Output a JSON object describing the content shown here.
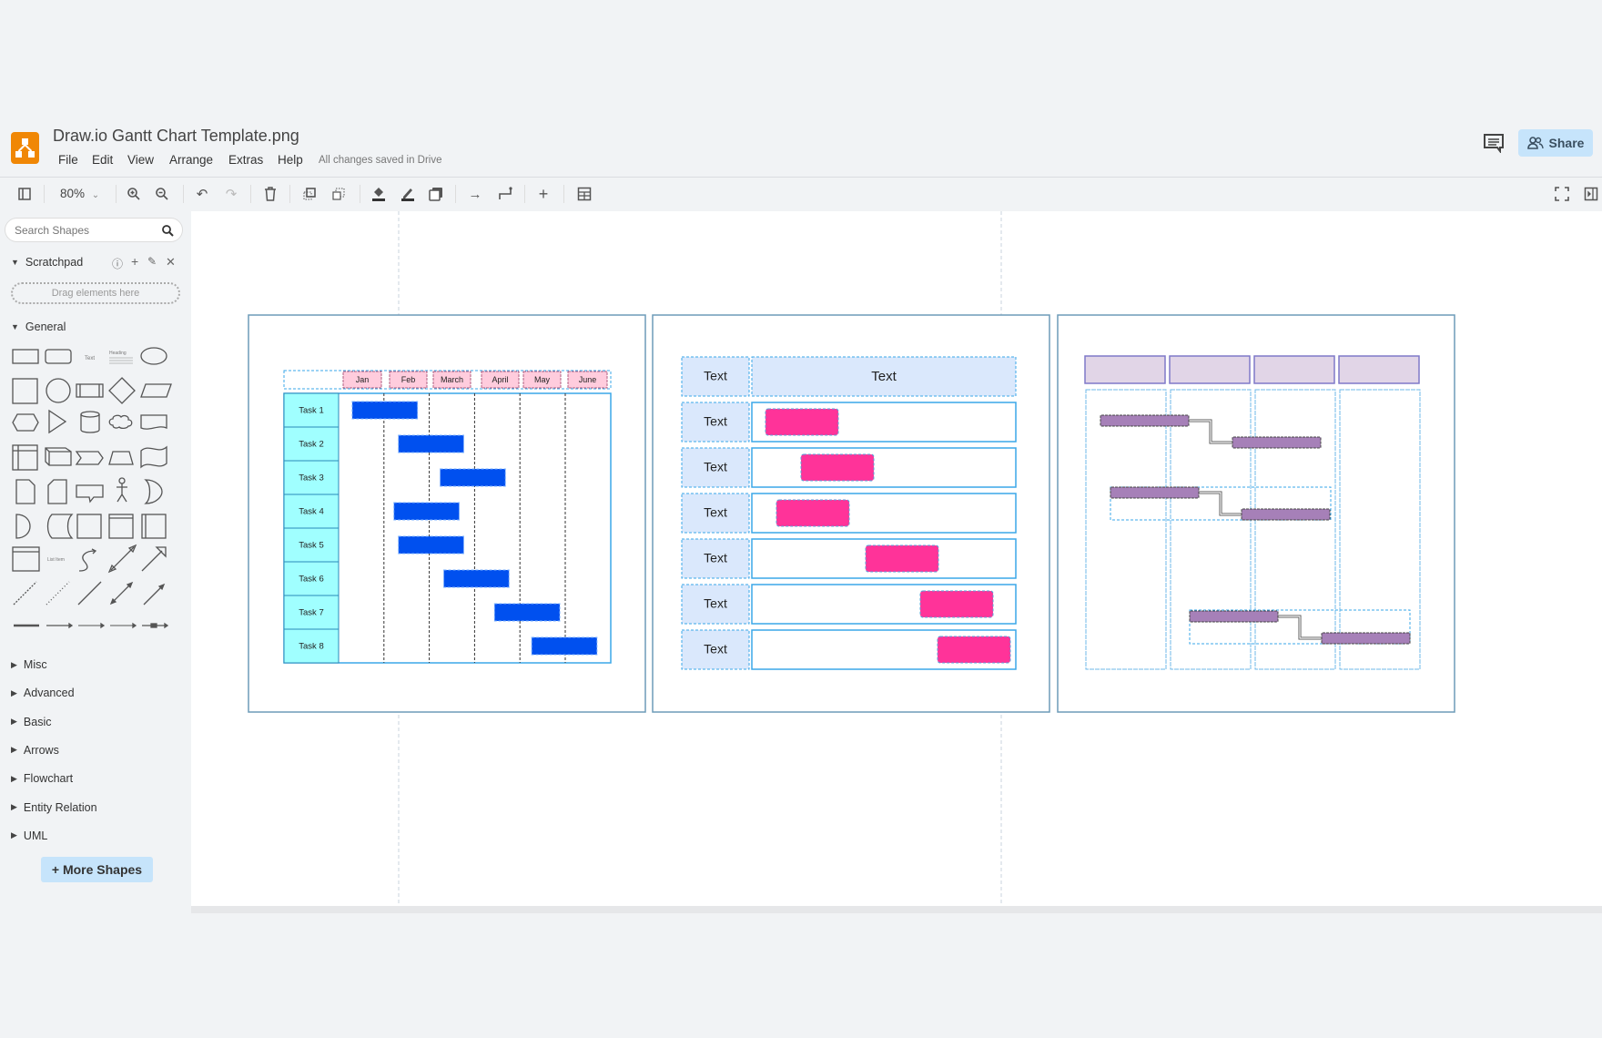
{
  "app": {
    "title": "Draw.io Gantt Chart Template.png",
    "status": "All changes saved in Drive",
    "share_label": "Share"
  },
  "menu": [
    "File",
    "Edit",
    "View",
    "Arrange",
    "Extras",
    "Help"
  ],
  "toolbar": {
    "zoom": "80%",
    "icons": [
      "sidebar-toggle-icon",
      "zoom-in-icon",
      "zoom-out-icon",
      "undo-icon",
      "redo-icon",
      "delete-icon",
      "to-front-icon",
      "to-back-icon",
      "fill-color-icon",
      "line-color-icon",
      "shadow-icon",
      "connection-icon",
      "waypoints-icon",
      "insert-icon",
      "table-icon",
      "fullscreen-icon",
      "format-panel-icon"
    ]
  },
  "sidebar": {
    "search_placeholder": "Search Shapes",
    "scratchpad": {
      "label": "Scratchpad",
      "drop_hint": "Drag elements here"
    },
    "general": {
      "label": "General",
      "shape_text": "Text",
      "shape_heading": "Heading",
      "shape_list_item": "List Item"
    },
    "sections": [
      "Misc",
      "Advanced",
      "Basic",
      "Arrows",
      "Flowchart",
      "Entity Relation",
      "UML"
    ],
    "more_shapes": "+ More Shapes"
  },
  "diagram": {
    "gantt1": {
      "months": [
        "Jan",
        "Feb",
        "March",
        "April",
        "May",
        "June"
      ],
      "tasks": [
        {
          "name": "Task 1",
          "start": 0.3,
          "end": 1.74
        },
        {
          "name": "Task 2",
          "start": 1.32,
          "end": 2.76
        },
        {
          "name": "Task 3",
          "start": 2.24,
          "end": 3.68
        },
        {
          "name": "Task 4",
          "start": 1.22,
          "end": 2.66
        },
        {
          "name": "Task 5",
          "start": 1.32,
          "end": 2.76
        },
        {
          "name": "Task 6",
          "start": 2.32,
          "end": 3.76
        },
        {
          "name": "Task 7",
          "start": 3.44,
          "end": 4.88
        },
        {
          "name": "Task 8",
          "start": 4.26,
          "end": 5.7
        }
      ],
      "colors": {
        "task_cell": "#a0ffff",
        "month_cell": "#ffccdd",
        "bar": "#0050ef"
      }
    },
    "gantt2": {
      "header_left": "Text",
      "header_right": "Text",
      "rows": [
        "Text",
        "Text",
        "Text",
        "Text",
        "Text",
        "Text"
      ],
      "colors": {
        "cell": "#dae8fc",
        "bar": "#ff3399"
      }
    },
    "gantt3": {
      "colors": {
        "header": "#e1d5e7",
        "bar": "#a680b8"
      }
    }
  }
}
